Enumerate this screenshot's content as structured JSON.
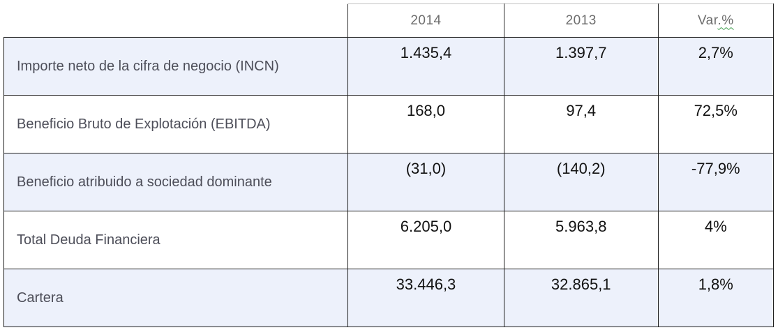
{
  "colors": {
    "row_highlight": "#edf1fb",
    "body_border": "#1f1f1f",
    "header_top_border": "#c3c3c3",
    "header_text": "#6d6d6d",
    "label_text": "#4d4e59",
    "value_text": "#121212",
    "spellcheck_squiggle": "#3f9e4d"
  },
  "table": {
    "header": {
      "corner": "",
      "y2014": "2014",
      "y2013": "2013",
      "var_prefix": "Var",
      "var_suffix": ".%"
    },
    "rows": [
      {
        "label": "Importe neto de la cifra de negocio (INCN)",
        "v2014": "1.435,4",
        "v2013": "1.397,7",
        "var": "2,7%"
      },
      {
        "label": "Beneficio Bruto de Explotación (EBITDA)",
        "v2014": "168,0",
        "v2013": "97,4",
        "var": "72,5%"
      },
      {
        "label": "Beneficio atribuido a sociedad dominante",
        "v2014": "(31,0)",
        "v2013": "(140,2)",
        "var": "-77,9%"
      },
      {
        "label": "Total Deuda Financiera",
        "v2014": "6.205,0",
        "v2013": "5.963,8",
        "var": "4%"
      },
      {
        "label": "Cartera",
        "v2014": "33.446,3",
        "v2013": "32.865,1",
        "var": "1,8%"
      }
    ]
  }
}
